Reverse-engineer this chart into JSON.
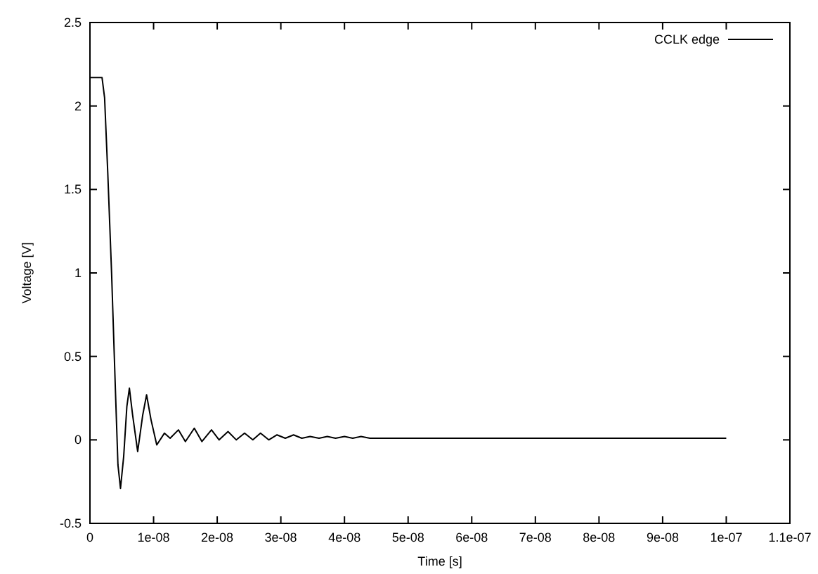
{
  "chart_data": {
    "type": "line",
    "xlabel": "Time [s]",
    "ylabel": "Voltage [V]",
    "legend": "top right",
    "grid": false,
    "line_style": "solid",
    "xlim": [
      0,
      1.1e-07
    ],
    "xticks": [
      0,
      {
        "value": 1e-08,
        "label": "1e-08"
      },
      {
        "value": 2e-08,
        "label": "2e-08"
      },
      {
        "value": 3e-08,
        "label": "3e-08"
      },
      {
        "value": 4e-08,
        "label": "4e-08"
      },
      {
        "value": 5e-08,
        "label": "5e-08"
      },
      {
        "value": 6e-08,
        "label": "6e-08"
      },
      {
        "value": 7e-08,
        "label": "7e-08"
      },
      {
        "value": 8e-08,
        "label": "8e-08"
      },
      {
        "value": 9e-08,
        "label": "9e-08"
      },
      {
        "value": 1e-07,
        "label": "1e-07"
      },
      {
        "value": 1.1e-07,
        "label": "1.1e-07"
      }
    ],
    "ylim": [
      -0.5,
      2.5
    ],
    "yticks": [
      -0.5,
      0,
      0.5,
      1,
      1.5,
      2,
      2.5
    ],
    "series": [
      {
        "name": "CCLK edge",
        "color": "#000000",
        "x": [
          0,
          1.9e-09,
          2.3e-09,
          2.8e-09,
          3.4e-09,
          4e-09,
          4.4e-09,
          4.8e-09,
          5.3e-09,
          5.8e-09,
          6.2e-09,
          6.7e-09,
          7.5e-09,
          8.3e-09,
          8.9e-09,
          9.6e-09,
          1.05e-08,
          1.17e-08,
          1.26e-08,
          1.39e-08,
          1.5e-08,
          1.64e-08,
          1.76e-08,
          1.91e-08,
          2.03e-08,
          2.17e-08,
          2.3e-08,
          2.43e-08,
          2.56e-08,
          2.68e-08,
          2.81e-08,
          2.94e-08,
          3.07e-08,
          3.2e-08,
          3.33e-08,
          3.46e-08,
          3.6e-08,
          3.73e-08,
          3.86e-08,
          4e-08,
          4.13e-08,
          4.26e-08,
          4.4e-08,
          4.6e-08,
          5e-08,
          6e-08,
          7e-08,
          8e-08,
          9e-08,
          1e-07
        ],
        "values": [
          2.17,
          2.17,
          2.05,
          1.6,
          1.0,
          0.3,
          -0.15,
          -0.29,
          -0.1,
          0.2,
          0.31,
          0.15,
          -0.07,
          0.15,
          0.27,
          0.12,
          -0.03,
          0.04,
          0.01,
          0.06,
          -0.01,
          0.07,
          -0.01,
          0.06,
          0.0,
          0.05,
          0.0,
          0.04,
          0.0,
          0.04,
          0.0,
          0.03,
          0.01,
          0.03,
          0.01,
          0.02,
          0.01,
          0.02,
          0.01,
          0.02,
          0.01,
          0.02,
          0.01,
          0.01,
          0.01,
          0.01,
          0.01,
          0.01,
          0.01,
          0.01
        ]
      }
    ]
  }
}
